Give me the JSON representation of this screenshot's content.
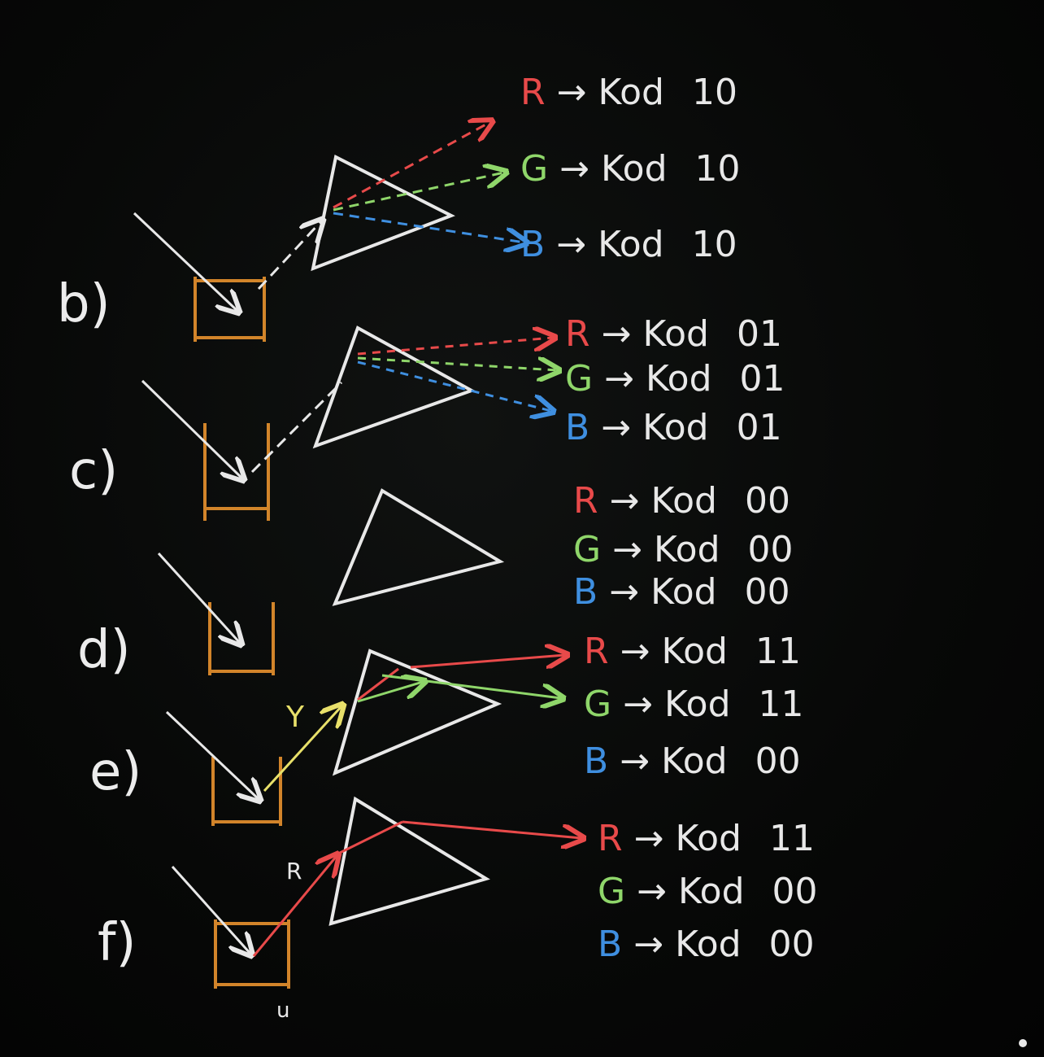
{
  "board": {
    "section_labels": [
      "b)",
      "c)",
      "d)",
      "e)",
      "f)"
    ],
    "beam_labels": {
      "yellow": "Y",
      "red": "R"
    },
    "bottom_mark": "u",
    "rows": [
      {
        "section": "b)",
        "items": [
          {
            "color": "R",
            "arrow": "→",
            "word": "Kod",
            "code": "10"
          },
          {
            "color": "G",
            "arrow": "→",
            "word": "Kod",
            "code": "10"
          },
          {
            "color": "B",
            "arrow": "→",
            "word": "Kod",
            "code": "10"
          }
        ]
      },
      {
        "section": "c)",
        "items": [
          {
            "color": "R",
            "arrow": "→",
            "word": "Kod",
            "code": "01"
          },
          {
            "color": "G",
            "arrow": "→",
            "word": "Kod",
            "code": "01"
          },
          {
            "color": "B",
            "arrow": "→",
            "word": "Kod",
            "code": "01"
          }
        ]
      },
      {
        "section": "d)",
        "items": [
          {
            "color": "R",
            "arrow": "→",
            "word": "Kod",
            "code": "00"
          },
          {
            "color": "G",
            "arrow": "→",
            "word": "Kod",
            "code": "00"
          },
          {
            "color": "B",
            "arrow": "→",
            "word": "Kod",
            "code": "00"
          }
        ]
      },
      {
        "section": "e)",
        "items": [
          {
            "color": "R",
            "arrow": "→",
            "word": "Kod",
            "code": "11"
          },
          {
            "color": "G",
            "arrow": "→",
            "word": "Kod",
            "code": "11"
          },
          {
            "color": "B",
            "arrow": "→",
            "word": "Kod",
            "code": "00"
          }
        ]
      },
      {
        "section": "f)",
        "items": [
          {
            "color": "R",
            "arrow": "→",
            "word": "Kod",
            "code": "11"
          },
          {
            "color": "G",
            "arrow": "→",
            "word": "Kod",
            "code": "00"
          },
          {
            "color": "B",
            "arrow": "→",
            "word": "Kod",
            "code": "00"
          }
        ]
      }
    ],
    "colors": {
      "board": "#050505",
      "chalk_white": "#e8e8e8",
      "red": "#e84a4a",
      "green": "#8fd66a",
      "blue": "#3f8fe0",
      "yellow": "#e8e06a",
      "orange": "#e8922e"
    }
  }
}
